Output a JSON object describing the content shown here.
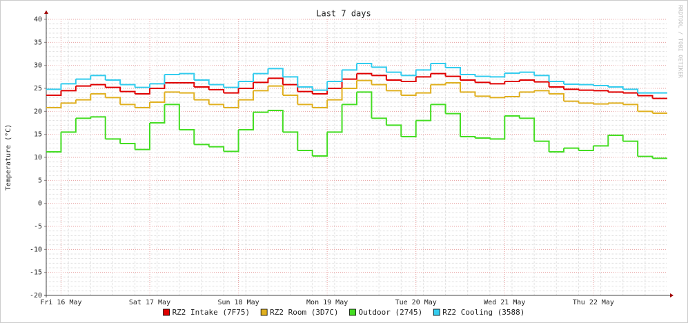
{
  "chart_data": {
    "type": "step",
    "title": "Last 7 days",
    "y_label": "Temperature (°C)",
    "watermark": "RRDTOOL / TOBI OETIKER",
    "x": [
      0,
      4,
      8,
      12,
      16,
      20,
      24,
      28,
      32,
      36,
      40,
      44,
      48,
      52,
      56,
      60,
      64,
      68,
      72,
      76,
      80,
      84,
      88,
      92,
      96,
      100,
      104,
      108,
      112,
      116,
      120,
      124,
      128,
      132,
      136,
      140,
      144,
      148,
      152,
      156,
      160,
      164
    ],
    "xlim": [
      0,
      168
    ],
    "xticks": [
      {
        "value": 4,
        "label": "Fri 16 May"
      },
      {
        "value": 28,
        "label": "Sat 17 May"
      },
      {
        "value": 52,
        "label": "Sun 18 May"
      },
      {
        "value": 76,
        "label": "Mon 19 May"
      },
      {
        "value": 100,
        "label": "Tue 20 May"
      },
      {
        "value": 124,
        "label": "Wed 21 May"
      },
      {
        "value": 148,
        "label": "Thu 22 May"
      }
    ],
    "ylim": [
      -20,
      40
    ],
    "yticks": [
      -20,
      -15,
      -10,
      -5,
      0,
      5,
      10,
      15,
      20,
      25,
      30,
      35,
      40
    ],
    "grid": true,
    "legend": "bottom",
    "series": [
      {
        "name": "RZ2 Intake (7F75)",
        "color": "#e00000",
        "values": [
          23.5,
          24.5,
          25.5,
          25.8,
          25.2,
          24.3,
          23.8,
          25.0,
          26.2,
          26.2,
          25.3,
          24.7,
          24.0,
          25.0,
          26.3,
          27.2,
          25.8,
          24.3,
          23.8,
          25.0,
          27.0,
          28.2,
          27.8,
          26.8,
          26.5,
          27.5,
          28.2,
          27.6,
          26.8,
          26.3,
          26.0,
          26.5,
          26.8,
          26.4,
          25.3,
          24.8,
          24.6,
          24.5,
          24.2,
          24.0,
          23.4,
          22.8
        ]
      },
      {
        "name": "RZ2 Room (3D7C)",
        "color": "#e0b020",
        "values": [
          20.8,
          21.8,
          22.5,
          23.8,
          23.0,
          21.5,
          20.8,
          22.0,
          24.2,
          24.0,
          22.5,
          21.5,
          20.8,
          22.5,
          24.5,
          25.5,
          23.5,
          21.5,
          20.8,
          22.5,
          25.0,
          26.7,
          25.8,
          24.5,
          23.5,
          24.0,
          25.8,
          26.2,
          24.2,
          23.3,
          23.0,
          23.2,
          24.2,
          24.5,
          23.8,
          22.2,
          21.8,
          21.6,
          21.8,
          21.5,
          20.0,
          19.6
        ]
      },
      {
        "name": "Outdoor (2745)",
        "color": "#44dd22",
        "values": [
          11.2,
          15.5,
          18.5,
          18.8,
          14.0,
          13.0,
          11.7,
          17.5,
          21.5,
          16.0,
          12.8,
          12.3,
          11.3,
          16.0,
          19.8,
          20.2,
          15.5,
          11.5,
          10.3,
          15.5,
          21.5,
          24.2,
          18.5,
          17.0,
          14.5,
          18.0,
          21.5,
          19.5,
          14.5,
          14.2,
          14.0,
          19.0,
          18.5,
          13.5,
          11.2,
          12.0,
          11.5,
          12.5,
          14.8,
          13.5,
          10.2,
          9.8
        ]
      },
      {
        "name": "RZ2 Cooling (3588)",
        "color": "#33ccee",
        "values": [
          24.8,
          26.0,
          27.0,
          27.8,
          26.8,
          25.8,
          25.2,
          26.0,
          28.0,
          28.2,
          26.8,
          25.8,
          25.2,
          26.5,
          28.2,
          29.3,
          27.5,
          25.3,
          24.6,
          26.5,
          29.0,
          30.4,
          29.6,
          28.5,
          27.8,
          29.0,
          30.4,
          29.5,
          28.0,
          27.6,
          27.5,
          28.3,
          28.5,
          27.8,
          26.5,
          25.9,
          25.8,
          25.6,
          25.3,
          24.8,
          24.0,
          24.0
        ]
      }
    ]
  }
}
